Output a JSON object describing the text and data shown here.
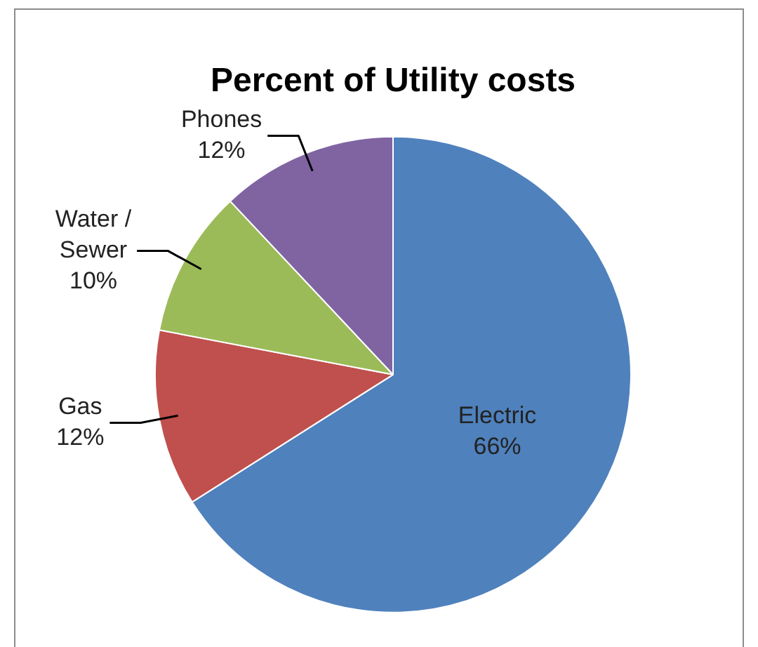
{
  "chart_data": {
    "type": "pie",
    "title": "Percent of Utility costs",
    "categories": [
      "Electric",
      "Gas",
      "Water / Sewer",
      "Phones"
    ],
    "values": [
      66,
      12,
      10,
      12
    ],
    "colors": [
      "#4f81bd",
      "#c0504d",
      "#9bbb59",
      "#8064a2"
    ],
    "value_labels": [
      "66%",
      "12%",
      "10%",
      "12%"
    ],
    "legend": false
  }
}
